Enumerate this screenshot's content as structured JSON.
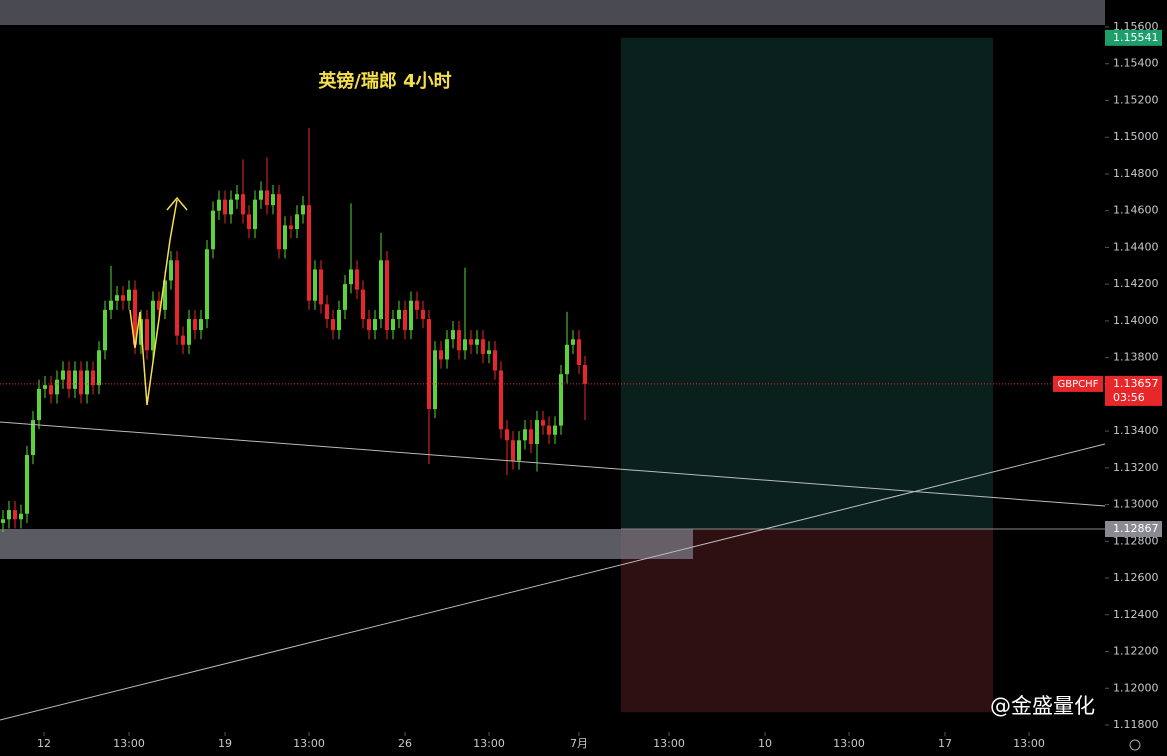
{
  "chart_data": {
    "type": "candlestick",
    "title": "英镑/瑞郎 4小时",
    "symbol": "GBPCHF",
    "countdown": "03:56",
    "watermark": "@金盛量化",
    "up_color": "#5cd33a",
    "down_color": "#e8272b",
    "xlim": [
      -0.5,
      183.67
    ],
    "ylim": [
      1.118,
      1.156
    ],
    "xticks": [
      {
        "value": 6.83,
        "label": "12"
      },
      {
        "value": 21,
        "label": "13:00"
      },
      {
        "value": 37,
        "label": "19"
      },
      {
        "value": 51,
        "label": "13:00"
      },
      {
        "value": 67,
        "label": "26"
      },
      {
        "value": 81,
        "label": "13:00"
      },
      {
        "value": 96,
        "label": "7月"
      },
      {
        "value": 111,
        "label": "13:00"
      },
      {
        "value": 127,
        "label": "10"
      },
      {
        "value": 141,
        "label": "13:00"
      },
      {
        "value": 157,
        "label": "17"
      },
      {
        "value": 171,
        "label": "13:00"
      }
    ],
    "yticks": [
      {
        "value": 1.156,
        "label": "1.15600"
      },
      {
        "value": 1.154,
        "label": "1.15400"
      },
      {
        "value": 1.152,
        "label": "1.15200"
      },
      {
        "value": 1.15,
        "label": "1.15000"
      },
      {
        "value": 1.148,
        "label": "1.14800"
      },
      {
        "value": 1.146,
        "label": "1.14600"
      },
      {
        "value": 1.144,
        "label": "1.14400"
      },
      {
        "value": 1.142,
        "label": "1.14200"
      },
      {
        "value": 1.14,
        "label": "1.14000"
      },
      {
        "value": 1.138,
        "label": "1.13800"
      },
      {
        "value": 1.136,
        "label": "1.13600"
      },
      {
        "value": 1.134,
        "label": "1.13400"
      },
      {
        "value": 1.132,
        "label": "1.13200"
      },
      {
        "value": 1.13,
        "label": "1.13000"
      },
      {
        "value": 1.128,
        "label": "1.12800"
      },
      {
        "value": 1.126,
        "label": "1.12600"
      },
      {
        "value": 1.124,
        "label": "1.12400"
      },
      {
        "value": 1.122,
        "label": "1.12200"
      },
      {
        "value": 1.12,
        "label": "1.12000"
      },
      {
        "value": 1.118,
        "label": "1.11800"
      }
    ],
    "target": 1.15541,
    "entry": 1.12867,
    "stop_low": 1.1187,
    "open": [
      1.129,
      1.1292,
      1.1297,
      1.1292,
      1.1295,
      1.1327,
      1.1346,
      1.1363,
      1.1365,
      1.136,
      1.1368,
      1.1373,
      1.1363,
      1.1373,
      1.136,
      1.1373,
      1.1365,
      1.1384,
      1.1406,
      1.1411,
      1.1414,
      1.1411,
      1.1417,
      1.1387,
      1.1401,
      1.1384,
      1.1411,
      1.1406,
      1.1422,
      1.1433,
      1.1392,
      1.1387,
      1.1401,
      1.1395,
      1.1401,
      1.1439,
      1.146,
      1.1466,
      1.1458,
      1.1466,
      1.1469,
      1.1458,
      1.145,
      1.1466,
      1.1471,
      1.1463,
      1.1469,
      1.1439,
      1.1452,
      1.145,
      1.1458,
      1.1463,
      1.1411,
      1.1428,
      1.1409,
      1.1401,
      1.1395,
      1.1406,
      1.142,
      1.1428,
      1.1417,
      1.1401,
      1.1395,
      1.1401,
      1.1433,
      1.1395,
      1.1401,
      1.1406,
      1.1395,
      1.1411,
      1.1406,
      1.1401,
      1.1352,
      1.1384,
      1.1379,
      1.139,
      1.1395,
      1.1384,
      1.139,
      1.1387,
      1.139,
      1.1382,
      1.1384,
      1.1373,
      1.1341,
      1.1335,
      1.1324,
      1.1335,
      1.1341,
      1.1333,
      1.1346,
      1.1343,
      1.1338,
      1.1343,
      1.1371,
      1.1387,
      1.139,
      1.1376
    ],
    "high": [
      1.1297,
      1.1302,
      1.1302,
      1.13,
      1.1332,
      1.1351,
      1.1368,
      1.137,
      1.137,
      1.1373,
      1.1378,
      1.1378,
      1.1378,
      1.1378,
      1.1378,
      1.1378,
      1.1389,
      1.1411,
      1.143,
      1.1419,
      1.1419,
      1.1422,
      1.1422,
      1.1406,
      1.1406,
      1.1416,
      1.1416,
      1.1427,
      1.1438,
      1.1438,
      1.1397,
      1.1406,
      1.1406,
      1.1406,
      1.1444,
      1.1465,
      1.1471,
      1.1471,
      1.1471,
      1.1474,
      1.1488,
      1.1463,
      1.1471,
      1.1476,
      1.1489,
      1.1474,
      1.1474,
      1.1457,
      1.1457,
      1.1463,
      1.1468,
      1.1505,
      1.1433,
      1.1433,
      1.1414,
      1.1406,
      1.1411,
      1.1425,
      1.1464,
      1.1433,
      1.1422,
      1.1406,
      1.1406,
      1.1448,
      1.1438,
      1.1406,
      1.1411,
      1.1411,
      1.1416,
      1.1416,
      1.1411,
      1.1406,
      1.1389,
      1.1389,
      1.1395,
      1.14,
      1.14,
      1.1429,
      1.1395,
      1.1395,
      1.1395,
      1.1389,
      1.1389,
      1.1378,
      1.1346,
      1.134,
      1.134,
      1.1346,
      1.1346,
      1.1351,
      1.1351,
      1.1348,
      1.1348,
      1.1376,
      1.1405,
      1.1395,
      1.1395,
      1.1381
    ],
    "low": [
      1.1285,
      1.1287,
      1.1287,
      1.1287,
      1.129,
      1.1322,
      1.1341,
      1.1358,
      1.1355,
      1.1355,
      1.1363,
      1.1358,
      1.1358,
      1.1355,
      1.1355,
      1.136,
      1.136,
      1.1379,
      1.1401,
      1.1406,
      1.1406,
      1.1406,
      1.1382,
      1.1382,
      1.1379,
      1.1379,
      1.1401,
      1.1401,
      1.1417,
      1.1387,
      1.1382,
      1.1382,
      1.139,
      1.139,
      1.1396,
      1.1434,
      1.1455,
      1.1453,
      1.1453,
      1.1461,
      1.1453,
      1.1445,
      1.1445,
      1.1461,
      1.1458,
      1.1458,
      1.1434,
      1.1434,
      1.1445,
      1.1445,
      1.1453,
      1.1406,
      1.1406,
      1.1404,
      1.1396,
      1.139,
      1.139,
      1.1401,
      1.1415,
      1.1412,
      1.1396,
      1.139,
      1.139,
      1.1396,
      1.139,
      1.139,
      1.1396,
      1.139,
      1.139,
      1.1401,
      1.1396,
      1.1322,
      1.1347,
      1.1374,
      1.1374,
      1.1385,
      1.1379,
      1.1379,
      1.1382,
      1.1382,
      1.1377,
      1.1377,
      1.1368,
      1.1336,
      1.1316,
      1.1319,
      1.1319,
      1.133,
      1.1328,
      1.1318,
      1.1338,
      1.1333,
      1.1333,
      1.1338,
      1.1366,
      1.1382,
      1.1371,
      1.1346
    ],
    "close": [
      1.1292,
      1.1297,
      1.1292,
      1.1295,
      1.1327,
      1.1346,
      1.1363,
      1.1365,
      1.136,
      1.1368,
      1.1373,
      1.1363,
      1.1373,
      1.136,
      1.1373,
      1.1365,
      1.1384,
      1.1406,
      1.1411,
      1.1414,
      1.1411,
      1.1417,
      1.1387,
      1.1401,
      1.1384,
      1.1411,
      1.1406,
      1.1422,
      1.1433,
      1.1392,
      1.1387,
      1.1401,
      1.1395,
      1.1401,
      1.1439,
      1.146,
      1.1466,
      1.1458,
      1.1466,
      1.1469,
      1.1458,
      1.145,
      1.1466,
      1.1471,
      1.1463,
      1.1469,
      1.1439,
      1.1452,
      1.145,
      1.1458,
      1.1463,
      1.1411,
      1.1428,
      1.1409,
      1.1401,
      1.1395,
      1.1406,
      1.142,
      1.1428,
      1.1417,
      1.1401,
      1.1395,
      1.1401,
      1.1433,
      1.1395,
      1.1401,
      1.1406,
      1.1395,
      1.1411,
      1.1406,
      1.1401,
      1.1352,
      1.1384,
      1.1379,
      1.139,
      1.1395,
      1.1384,
      1.139,
      1.1387,
      1.139,
      1.1382,
      1.1384,
      1.1373,
      1.1341,
      1.1335,
      1.1324,
      1.1335,
      1.1341,
      1.1333,
      1.1346,
      1.1343,
      1.1338,
      1.1343,
      1.1371,
      1.1387,
      1.139,
      1.1376,
      1.13657
    ]
  }
}
